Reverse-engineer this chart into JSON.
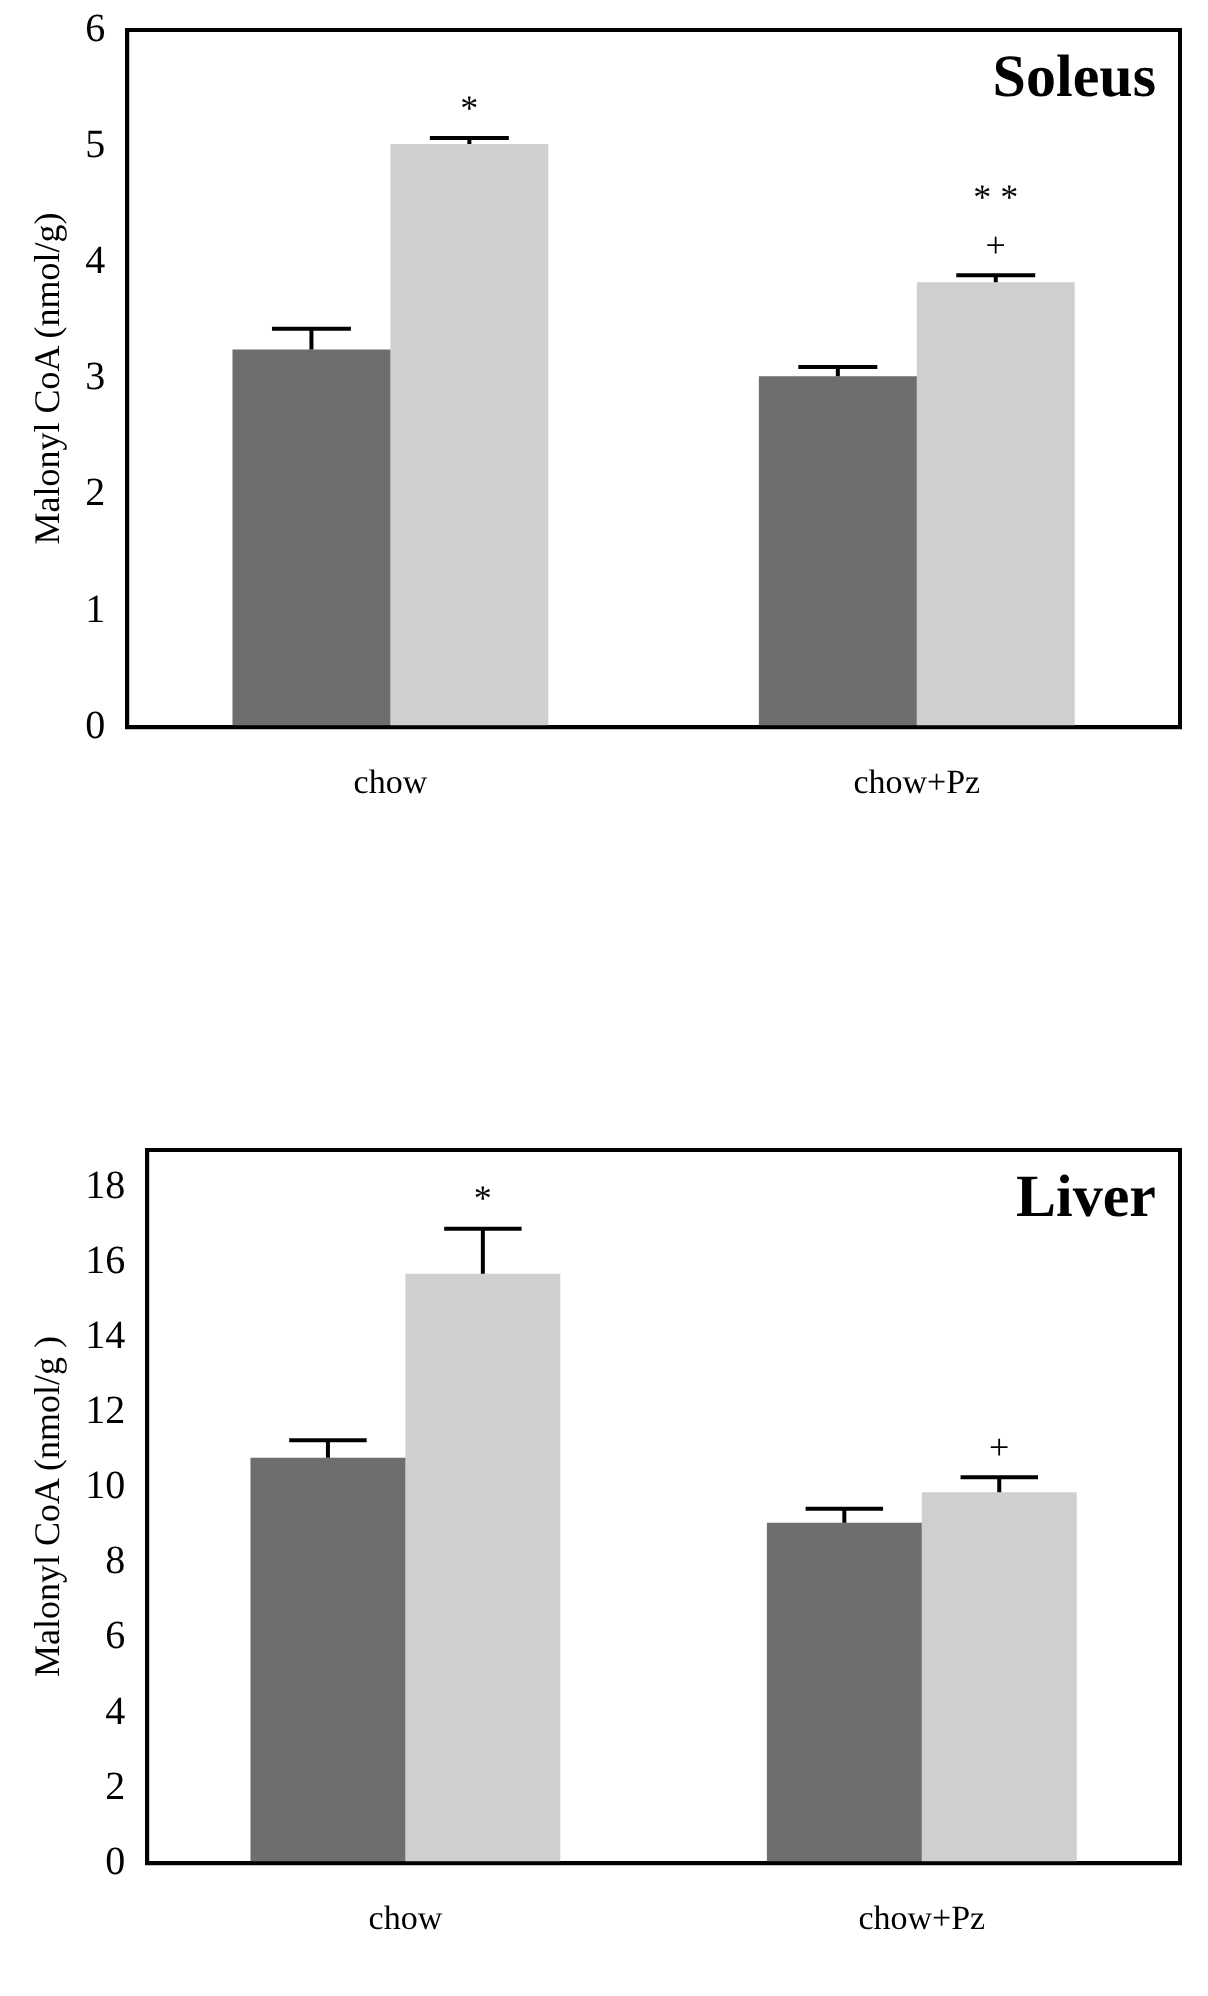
{
  "chart_data": [
    {
      "type": "bar",
      "title": "Soleus",
      "ylabel": "Malonyl CoA (nmol/g)",
      "categories": [
        "chow",
        "chow+Pz"
      ],
      "series": [
        {
          "color": "#6e6e6e",
          "values": [
            3.25,
            3.02
          ],
          "errors": [
            [
              3.25,
              3.43
            ],
            [
              3.02,
              3.1
            ]
          ]
        },
        {
          "color": "#cfcfcf",
          "values": [
            5.02,
            3.83
          ],
          "errors": [
            [
              5.02,
              5.07
            ],
            [
              3.83,
              3.89
            ]
          ]
        }
      ],
      "ylim": [
        0,
        6
      ],
      "yticks": [
        0,
        1,
        2,
        3,
        4,
        5,
        6
      ],
      "grid": false,
      "annotations": [
        {
          "text": "*",
          "x": "chow",
          "y": 5.02
        },
        {
          "text": "+",
          "x": "chow+Pz",
          "y": 3.83
        },
        {
          "text": "* *",
          "x": "chow+Pz",
          "y": 3.83
        }
      ]
    },
    {
      "type": "bar",
      "title": "Liver",
      "ylabel": "Malonyl CoA (nmol/g )",
      "categories": [
        "chow",
        "chow+Pz"
      ],
      "series": [
        {
          "color": "#6e6e6e",
          "values": [
            10.8,
            9.07
          ],
          "errors": [
            [
              10.8,
              11.27
            ],
            [
              9.07,
              9.44
            ]
          ]
        },
        {
          "color": "#cfcfcf",
          "values": [
            15.7,
            9.88
          ],
          "errors": [
            [
              15.7,
              16.9
            ],
            [
              9.88,
              10.28
            ]
          ]
        }
      ],
      "ylim": [
        0,
        19
      ],
      "yticks": [
        0,
        2,
        4,
        6,
        8,
        10,
        12,
        14,
        16,
        18
      ],
      "grid": false,
      "annotations": [
        {
          "text": "*",
          "x": "chow",
          "y": 15.7
        },
        {
          "text": "+",
          "x": "chow+Pz",
          "y": 9.88
        }
      ]
    }
  ]
}
